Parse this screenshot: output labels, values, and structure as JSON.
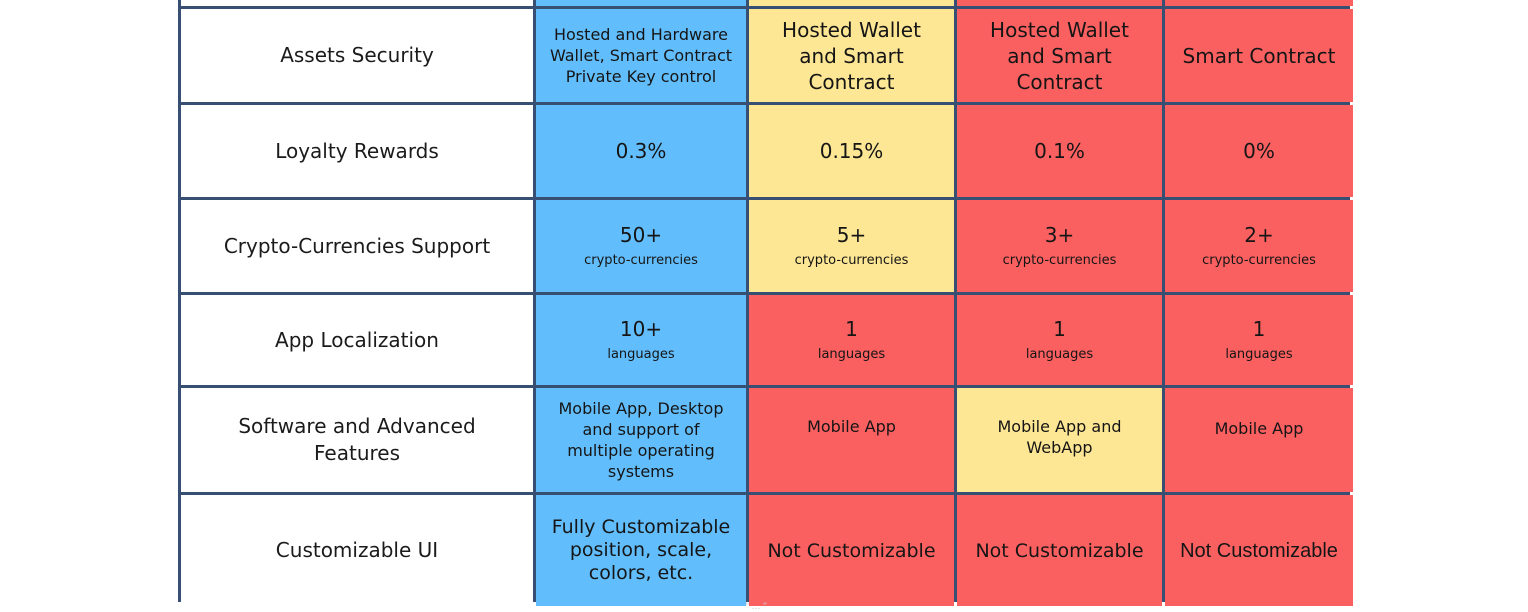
{
  "table": {
    "top_colors": {
      "col1": "#61bdfc",
      "col2": "#fde694",
      "col3": "#fb6061",
      "col4": "#fb6061",
      "border": "#384f74"
    },
    "rows": [
      {
        "label": "Assets Security",
        "cells": [
          {
            "main": "Hosted and Hardware Wallet, Smart Contract Private Key control",
            "color": "blue"
          },
          {
            "main": "Hosted Wallet and Smart Contract",
            "color": "yellow"
          },
          {
            "main": "Hosted Wallet and Smart Contract",
            "color": "red"
          },
          {
            "main": "Smart Contract",
            "color": "red"
          }
        ]
      },
      {
        "label": "Loyalty Rewards",
        "cells": [
          {
            "main": "0.3%",
            "color": "blue"
          },
          {
            "main": "0.15%",
            "color": "yellow"
          },
          {
            "main": "0.1%",
            "color": "red"
          },
          {
            "main": "0%",
            "color": "red"
          }
        ]
      },
      {
        "label": "Crypto-Currencies Support",
        "cells": [
          {
            "main": "50+",
            "sub": "crypto-currencies",
            "color": "blue"
          },
          {
            "main": "5+",
            "sub": "crypto-currencies",
            "color": "yellow"
          },
          {
            "main": "3+",
            "sub": "crypto-currencies",
            "color": "red"
          },
          {
            "main": "2+",
            "sub": "crypto-currencies",
            "color": "red"
          }
        ]
      },
      {
        "label": "App Localization",
        "cells": [
          {
            "main": "10+",
            "sub": "languages",
            "color": "blue"
          },
          {
            "main": "1",
            "sub": "languages",
            "color": "red"
          },
          {
            "main": "1",
            "sub": "languages",
            "color": "red"
          },
          {
            "main": "1",
            "sub": "languages",
            "color": "red"
          }
        ]
      },
      {
        "label": "Software and Advanced Features",
        "cells": [
          {
            "main": "Mobile App, Desktop and support of multiple operating systems",
            "color": "blue"
          },
          {
            "main": "Mobile App",
            "color": "red"
          },
          {
            "main": "Mobile App and WebApp",
            "color": "yellow"
          },
          {
            "main": "Mobile App",
            "color": "red"
          }
        ]
      },
      {
        "label": "Customizable UI",
        "cells": [
          {
            "main": "Fully Customizable position, scale, colors, etc.",
            "color": "blue"
          },
          {
            "main": "Not Customizable",
            "color": "red"
          },
          {
            "main": "Not Customizable",
            "color": "red"
          },
          {
            "main": "Not Customizable",
            "color": "red"
          }
        ]
      }
    ]
  }
}
